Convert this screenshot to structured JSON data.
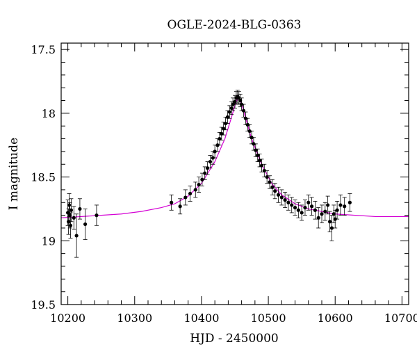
{
  "chart_data": {
    "type": "scatter",
    "title": "OGLE-2024-BLG-0363",
    "xlabel": "HJD - 2450000",
    "ylabel": "I magnitude",
    "xlim": [
      10190,
      10710
    ],
    "ylim": [
      19.5,
      17.45
    ],
    "y_inverted": true,
    "x_ticks": [
      10200,
      10300,
      10400,
      10500,
      10600,
      10700
    ],
    "x_tick_labels": [
      "10200",
      "10300",
      "10400",
      "10500",
      "10600",
      "10700"
    ],
    "y_ticks": [
      17.5,
      18,
      18.5,
      19,
      19.5
    ],
    "y_tick_labels": [
      "17.5",
      "18",
      "18.5",
      "19",
      "19.5"
    ],
    "grid": false,
    "model_color": "#d400d4",
    "point_color": "#000000",
    "model": {
      "name": "",
      "baseline_mag": 18.82,
      "peak_mag": 17.86,
      "t0": 10455,
      "tE": 28,
      "points": [
        [
          10190,
          18.82
        ],
        [
          10220,
          18.81
        ],
        [
          10250,
          18.8
        ],
        [
          10280,
          18.79
        ],
        [
          10310,
          18.77
        ],
        [
          10340,
          18.74
        ],
        [
          10360,
          18.71
        ],
        [
          10380,
          18.65
        ],
        [
          10400,
          18.55
        ],
        [
          10420,
          18.38
        ],
        [
          10435,
          18.2
        ],
        [
          10445,
          18.03
        ],
        [
          10450,
          17.94
        ],
        [
          10455,
          17.87
        ],
        [
          10460,
          17.92
        ],
        [
          10465,
          18.02
        ],
        [
          10475,
          18.2
        ],
        [
          10490,
          18.4
        ],
        [
          10505,
          18.55
        ],
        [
          10520,
          18.64
        ],
        [
          10540,
          18.71
        ],
        [
          10560,
          18.75
        ],
        [
          10580,
          18.77
        ],
        [
          10600,
          18.79
        ],
        [
          10630,
          18.8
        ],
        [
          10660,
          18.81
        ],
        [
          10710,
          18.81
        ]
      ]
    },
    "series": [
      {
        "name": "",
        "points": [
          [
            10200,
            18.78,
            0.1
          ],
          [
            10201,
            18.85,
            0.1
          ],
          [
            10202,
            18.72,
            0.09
          ],
          [
            10203,
            18.8,
            0.1
          ],
          [
            10204,
            18.88,
            0.1
          ],
          [
            10205,
            18.76,
            0.09
          ],
          [
            10209,
            18.82,
            0.09
          ],
          [
            10213,
            18.96,
            0.17
          ],
          [
            10218,
            18.75,
            0.08
          ],
          [
            10226,
            18.87,
            0.12
          ],
          [
            10243,
            18.8,
            0.08
          ],
          [
            10355,
            18.7,
            0.06
          ],
          [
            10368,
            18.73,
            0.06
          ],
          [
            10376,
            18.66,
            0.06
          ],
          [
            10383,
            18.63,
            0.06
          ],
          [
            10391,
            18.6,
            0.06
          ],
          [
            10396,
            18.56,
            0.06
          ],
          [
            10401,
            18.52,
            0.05
          ],
          [
            10405,
            18.47,
            0.05
          ],
          [
            10409,
            18.43,
            0.05
          ],
          [
            10413,
            18.38,
            0.05
          ],
          [
            10417,
            18.35,
            0.05
          ],
          [
            10420,
            18.3,
            0.05
          ],
          [
            10424,
            18.25,
            0.05
          ],
          [
            10427,
            18.2,
            0.05
          ],
          [
            10430,
            18.16,
            0.05
          ],
          [
            10433,
            18.12,
            0.05
          ],
          [
            10436,
            18.08,
            0.05
          ],
          [
            10439,
            18.03,
            0.05
          ],
          [
            10442,
            17.99,
            0.05
          ],
          [
            10445,
            17.96,
            0.05
          ],
          [
            10447,
            17.93,
            0.05
          ],
          [
            10450,
            17.91,
            0.05
          ],
          [
            10452,
            17.88,
            0.05
          ],
          [
            10454,
            17.87,
            0.05
          ],
          [
            10456,
            17.88,
            0.05
          ],
          [
            10458,
            17.9,
            0.05
          ],
          [
            10460,
            17.93,
            0.05
          ],
          [
            10463,
            17.98,
            0.05
          ],
          [
            10466,
            18.04,
            0.05
          ],
          [
            10469,
            18.09,
            0.05
          ],
          [
            10472,
            18.14,
            0.05
          ],
          [
            10475,
            18.19,
            0.05
          ],
          [
            10478,
            18.24,
            0.05
          ],
          [
            10481,
            18.29,
            0.05
          ],
          [
            10484,
            18.33,
            0.05
          ],
          [
            10487,
            18.37,
            0.05
          ],
          [
            10490,
            18.41,
            0.05
          ],
          [
            10494,
            18.45,
            0.05
          ],
          [
            10498,
            18.5,
            0.05
          ],
          [
            10502,
            18.54,
            0.05
          ],
          [
            10506,
            18.58,
            0.06
          ],
          [
            10510,
            18.61,
            0.06
          ],
          [
            10515,
            18.64,
            0.06
          ],
          [
            10520,
            18.66,
            0.06
          ],
          [
            10525,
            18.68,
            0.06
          ],
          [
            10530,
            18.7,
            0.06
          ],
          [
            10535,
            18.72,
            0.06
          ],
          [
            10540,
            18.74,
            0.06
          ],
          [
            10545,
            18.76,
            0.06
          ],
          [
            10550,
            18.78,
            0.06
          ],
          [
            10555,
            18.74,
            0.06
          ],
          [
            10560,
            18.7,
            0.06
          ],
          [
            10565,
            18.73,
            0.07
          ],
          [
            10570,
            18.76,
            0.07
          ],
          [
            10575,
            18.82,
            0.08
          ],
          [
            10580,
            18.79,
            0.07
          ],
          [
            10585,
            18.77,
            0.07
          ],
          [
            10589,
            18.72,
            0.07
          ],
          [
            10592,
            18.85,
            0.08
          ],
          [
            10595,
            18.9,
            0.1
          ],
          [
            10598,
            18.79,
            0.07
          ],
          [
            10600,
            18.83,
            0.07
          ],
          [
            10603,
            18.76,
            0.07
          ],
          [
            10608,
            18.72,
            0.08
          ],
          [
            10614,
            18.73,
            0.07
          ],
          [
            10622,
            18.7,
            0.07
          ]
        ]
      }
    ]
  }
}
